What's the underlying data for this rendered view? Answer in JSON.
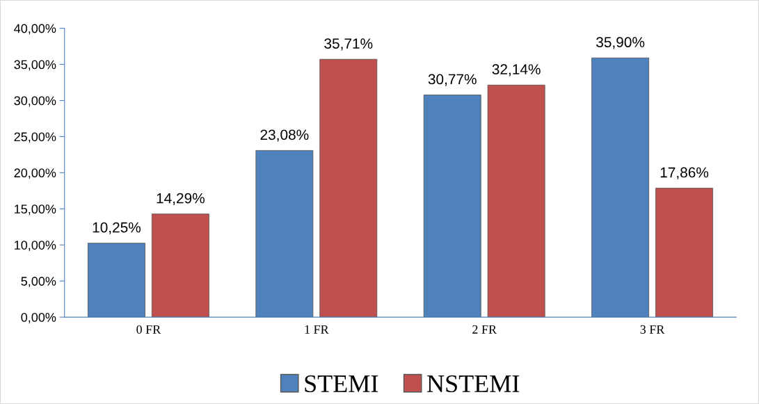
{
  "chart_data": {
    "type": "bar",
    "categories": [
      "0 FR",
      "1 FR",
      "2 FR",
      "3 FR"
    ],
    "series": [
      {
        "name": "STEMI",
        "color": "#4f81bd",
        "values": [
          10.25,
          23.08,
          30.77,
          35.9
        ],
        "value_labels": [
          "10,25%",
          "23,08%",
          "30,77%",
          "35,90%"
        ]
      },
      {
        "name": "NSTEMI",
        "color": "#c0504d",
        "values": [
          14.29,
          35.71,
          32.14,
          17.86
        ],
        "value_labels": [
          "14,29%",
          "35,71%",
          "32,14%",
          "17,86%"
        ]
      }
    ],
    "ylim": [
      0,
      40
    ],
    "yticks": [
      {
        "value": 0,
        "label": "0,00%"
      },
      {
        "value": 5,
        "label": "5,00%"
      },
      {
        "value": 10,
        "label": "10,00%"
      },
      {
        "value": 15,
        "label": "15,00%"
      },
      {
        "value": 20,
        "label": "20,00%"
      },
      {
        "value": 25,
        "label": "25,00%"
      },
      {
        "value": 30,
        "label": "30,00%"
      },
      {
        "value": 35,
        "label": "35,00%"
      },
      {
        "value": 40,
        "label": "40,00%"
      }
    ],
    "grid": false,
    "legend": "bottom"
  }
}
